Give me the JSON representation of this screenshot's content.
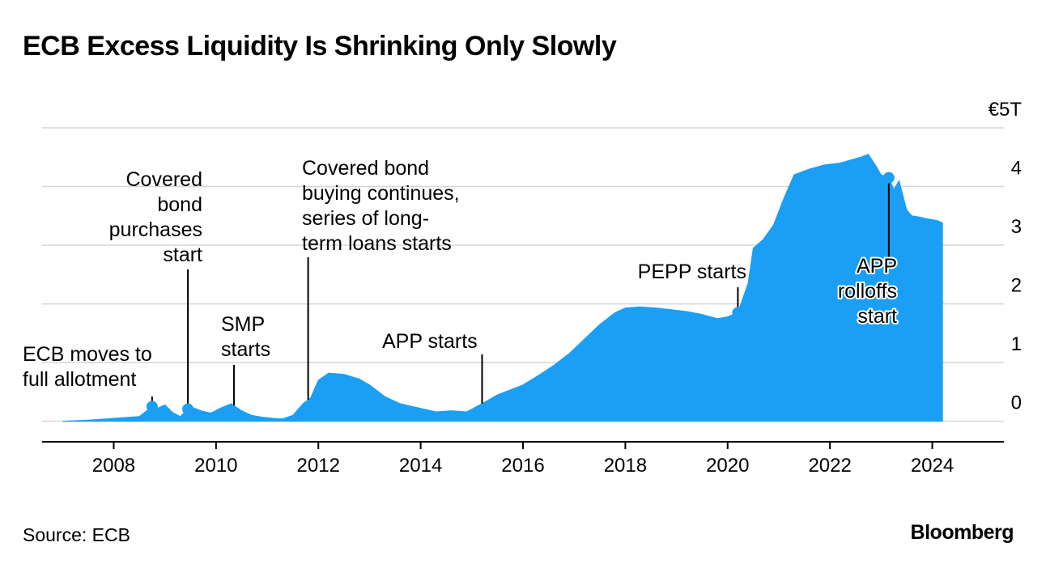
{
  "header": {
    "title": "ECB Excess Liquidity Is Shrinking Only Slowly"
  },
  "footer": {
    "source": "Source: ECB",
    "brand": "Bloomberg"
  },
  "chart_data": {
    "type": "area",
    "title": "ECB Excess Liquidity Is Shrinking Only Slowly",
    "xlabel": "",
    "ylabel": "",
    "x_range": [
      2006.6,
      2025.4
    ],
    "ylim": [
      -0.35,
      5
    ],
    "y_unit_label": "€5T",
    "grid": true,
    "y_axis_side": "right",
    "color": "#1a9ff5",
    "x_ticks": [
      2008,
      2010,
      2012,
      2014,
      2016,
      2018,
      2020,
      2022,
      2024
    ],
    "x_tick_labels": [
      "2008",
      "2010",
      "2012",
      "2014",
      "2016",
      "2018",
      "2020",
      "2022",
      "2024"
    ],
    "y_ticks": [
      0,
      1,
      2,
      3,
      4,
      5
    ],
    "y_tick_labels": [
      "0",
      "1",
      "2",
      "3",
      "4",
      "€5T"
    ],
    "x": [
      2007.0,
      2007.5,
      2008.0,
      2008.5,
      2008.75,
      2008.85,
      2009.0,
      2009.15,
      2009.3,
      2009.5,
      2009.7,
      2009.9,
      2010.1,
      2010.3,
      2010.5,
      2010.7,
      2010.9,
      2011.1,
      2011.3,
      2011.5,
      2011.7,
      2011.85,
      2012.0,
      2012.2,
      2012.5,
      2012.8,
      2013.0,
      2013.3,
      2013.6,
      2014.0,
      2014.3,
      2014.6,
      2014.9,
      2015.2,
      2015.5,
      2015.8,
      2016.0,
      2016.3,
      2016.6,
      2016.9,
      2017.2,
      2017.5,
      2017.8,
      2018.0,
      2018.3,
      2018.6,
      2018.9,
      2019.2,
      2019.5,
      2019.8,
      2020.0,
      2020.2,
      2020.4,
      2020.5,
      2020.7,
      2020.9,
      2021.1,
      2021.3,
      2021.6,
      2021.9,
      2022.2,
      2022.4,
      2022.6,
      2022.75,
      2022.9,
      2023.0,
      2023.15,
      2023.25,
      2023.35,
      2023.5,
      2023.6,
      2023.75,
      2023.9,
      2024.1,
      2024.2
    ],
    "values": [
      0.0,
      0.02,
      0.05,
      0.08,
      0.25,
      0.22,
      0.28,
      0.15,
      0.08,
      0.25,
      0.18,
      0.14,
      0.23,
      0.3,
      0.18,
      0.1,
      0.07,
      0.05,
      0.04,
      0.1,
      0.3,
      0.4,
      0.7,
      0.82,
      0.8,
      0.72,
      0.62,
      0.42,
      0.3,
      0.22,
      0.16,
      0.18,
      0.16,
      0.3,
      0.45,
      0.55,
      0.62,
      0.78,
      0.95,
      1.15,
      1.4,
      1.65,
      1.85,
      1.93,
      1.95,
      1.93,
      1.9,
      1.87,
      1.82,
      1.75,
      1.78,
      1.85,
      2.35,
      2.95,
      3.1,
      3.35,
      3.8,
      4.2,
      4.3,
      4.37,
      4.4,
      4.45,
      4.5,
      4.55,
      4.35,
      4.2,
      4.15,
      3.95,
      4.1,
      3.6,
      3.5,
      3.48,
      3.45,
      3.42,
      3.38
    ],
    "markers": [
      {
        "x": 2008.75,
        "label_lines": [
          "ECB moves to",
          "full allotment"
        ]
      },
      {
        "x": 2009.45,
        "label_lines": [
          "Covered",
          "bond",
          "purchases",
          "start"
        ]
      },
      {
        "x": 2010.35,
        "label_lines": [
          "SMP",
          "starts"
        ]
      },
      {
        "x": 2011.8,
        "label_lines": [
          "Covered bond",
          "buying continues,",
          "series of long-",
          "term loans starts"
        ]
      },
      {
        "x": 2015.2,
        "label_lines": [
          "APP starts"
        ]
      },
      {
        "x": 2020.2,
        "label_lines": [
          "PEPP starts"
        ]
      },
      {
        "x": 2023.15,
        "label_lines": [
          "APP",
          "rolloffs",
          "start"
        ]
      }
    ]
  }
}
